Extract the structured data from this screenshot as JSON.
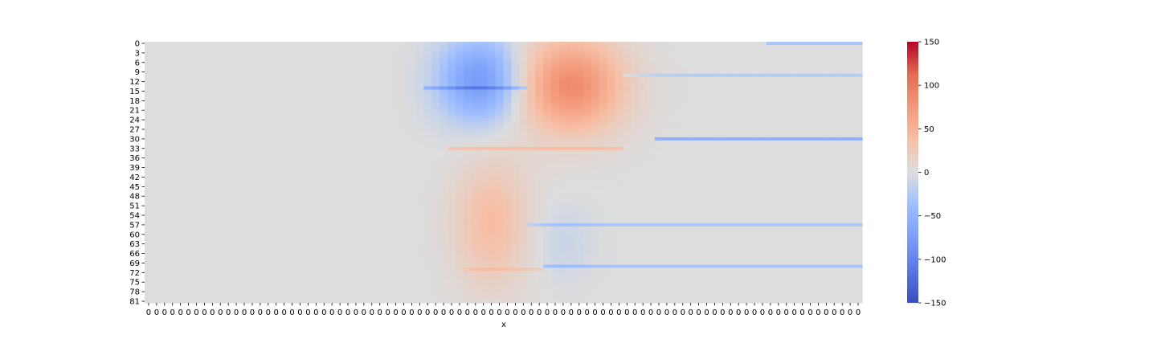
{
  "chart_data": {
    "type": "heatmap",
    "title": "",
    "xlabel": "x",
    "ylabel": "",
    "n_rows": 82,
    "n_cols": 90,
    "y_tick_labels": [
      "0",
      "3",
      "6",
      "9",
      "12",
      "15",
      "18",
      "21",
      "24",
      "27",
      "30",
      "33",
      "36",
      "39",
      "42",
      "45",
      "48",
      "51",
      "54",
      "57",
      "60",
      "63",
      "66",
      "69",
      "72",
      "75",
      "78",
      "81"
    ],
    "x_tick_label": "0",
    "colormap": "coolwarm",
    "color_range": [
      -150,
      150
    ],
    "colorbar_ticks": [
      150,
      100,
      50,
      0,
      -50,
      -100,
      -150
    ],
    "colorbar_tick_labels": [
      "150",
      "100",
      "50",
      "0",
      "−50",
      "−100",
      "−150"
    ],
    "features": [
      {
        "shape": "blob",
        "rows": [
          0,
          30
        ],
        "cols": [
          36,
          47
        ],
        "value": -120,
        "note": "blue lobe, strongest near top"
      },
      {
        "shape": "blob",
        "rows": [
          0,
          34
        ],
        "cols": [
          46,
          60
        ],
        "value": 130,
        "note": "red lobe, strongest near top"
      },
      {
        "shape": "blob",
        "rows": [
          35,
          78
        ],
        "cols": [
          38,
          48
        ],
        "value": 40,
        "note": "weak salmon lobe"
      },
      {
        "shape": "blob",
        "rows": [
          50,
          75
        ],
        "cols": [
          48,
          56
        ],
        "value": -12,
        "note": "faint blue region"
      },
      {
        "shape": "line",
        "row": 30,
        "cols": [
          64,
          90
        ],
        "value": -55
      },
      {
        "shape": "line",
        "row": 0,
        "cols": [
          78,
          90
        ],
        "value": -30
      },
      {
        "shape": "line",
        "row": 10,
        "cols": [
          60,
          90
        ],
        "value": -22
      },
      {
        "shape": "line",
        "row": 14,
        "cols": [
          35,
          48
        ],
        "value": -40
      },
      {
        "shape": "line",
        "row": 33,
        "cols": [
          38,
          60
        ],
        "value": 30
      },
      {
        "shape": "line",
        "row": 57,
        "cols": [
          48,
          90
        ],
        "value": -25
      },
      {
        "shape": "line",
        "row": 70,
        "cols": [
          50,
          90
        ],
        "value": -30
      },
      {
        "shape": "line",
        "row": 71,
        "cols": [
          40,
          50
        ],
        "value": 18
      }
    ]
  }
}
